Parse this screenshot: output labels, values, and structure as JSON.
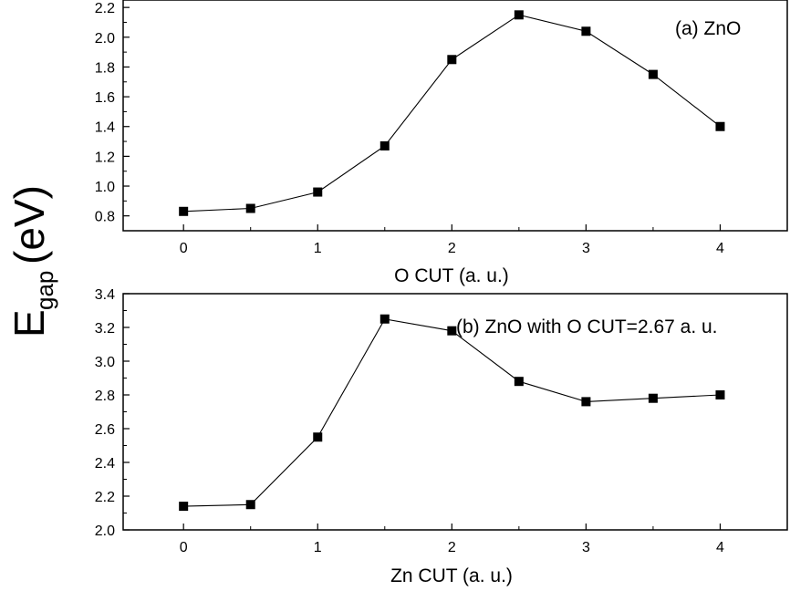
{
  "ylabel": {
    "main": "E",
    "subscript": "gap",
    "unit": "(eV)"
  },
  "chart_data": [
    {
      "type": "line",
      "annotation": "(a) ZnO",
      "xlabel": "O CUT (a. u.)",
      "ylabel": "",
      "xlim": [
        -0.45,
        4.5
      ],
      "ylim": [
        0.7,
        2.25
      ],
      "xticks": [
        0,
        1,
        2,
        3,
        4
      ],
      "xtick_labels": [
        "0",
        "1",
        "2",
        "3",
        "4"
      ],
      "yticks": [
        0.8,
        1.0,
        1.2,
        1.4,
        1.6,
        1.8,
        2.0,
        2.2
      ],
      "ytick_labels": [
        "0.8",
        "1.0",
        "1.2",
        "1.4",
        "1.6",
        "1.8",
        "2.0",
        "2.2"
      ],
      "grid": false,
      "series": [
        {
          "marker": "square",
          "color": "#000000",
          "x": [
            0,
            0.5,
            1,
            1.5,
            2,
            2.5,
            3,
            3.5,
            4
          ],
          "y": [
            0.83,
            0.85,
            0.96,
            1.27,
            1.85,
            2.15,
            2.04,
            1.75,
            1.4
          ]
        }
      ]
    },
    {
      "type": "line",
      "annotation": "(b) ZnO with O CUT=2.67 a. u.",
      "xlabel": "Zn CUT (a. u.)",
      "ylabel": "",
      "xlim": [
        -0.45,
        4.5
      ],
      "ylim": [
        2.0,
        3.4
      ],
      "xticks": [
        0,
        1,
        2,
        3,
        4
      ],
      "xtick_labels": [
        "0",
        "1",
        "2",
        "3",
        "4"
      ],
      "yticks": [
        2.0,
        2.2,
        2.4,
        2.6,
        2.8,
        3.0,
        3.2,
        3.4
      ],
      "ytick_labels": [
        "2.0",
        "2.2",
        "2.4",
        "2.6",
        "2.8",
        "3.0",
        "3.2",
        "3.4"
      ],
      "grid": false,
      "series": [
        {
          "marker": "square",
          "color": "#000000",
          "x": [
            0,
            0.5,
            1,
            1.5,
            2,
            2.5,
            3,
            3.5,
            4
          ],
          "y": [
            2.14,
            2.15,
            2.55,
            3.25,
            3.18,
            2.88,
            2.76,
            2.78,
            2.8
          ]
        }
      ]
    }
  ]
}
